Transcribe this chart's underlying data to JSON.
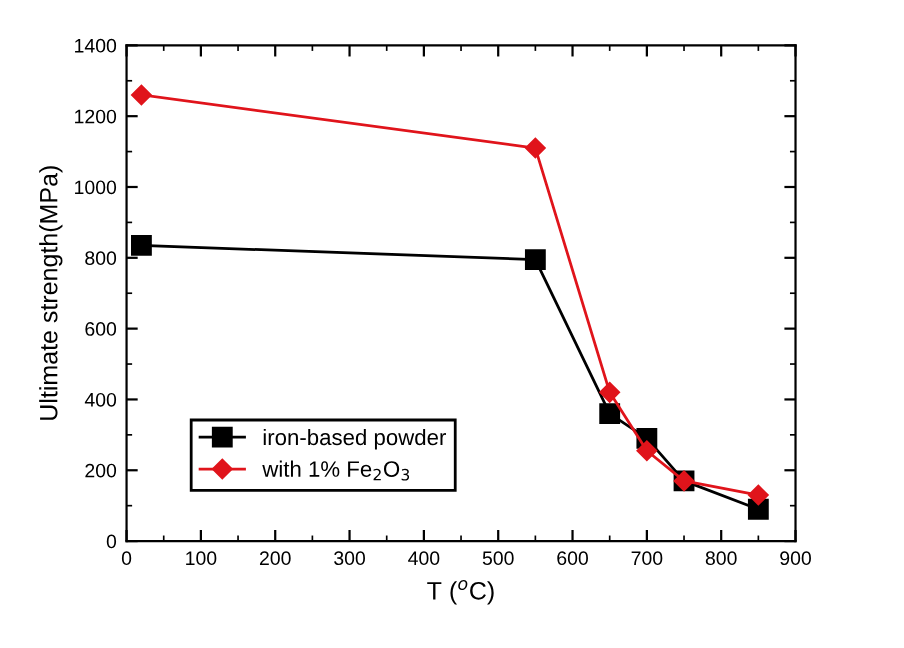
{
  "chart_data": {
    "type": "line",
    "xlabel": "T ($^{o}$C)",
    "ylabel": "Ultimate strength(MPa)",
    "xlim": [
      0,
      900
    ],
    "xticks": [
      0,
      100,
      200,
      300,
      400,
      500,
      600,
      700,
      800,
      900
    ],
    "ylim": [
      0,
      1400
    ],
    "yticks": [
      0,
      200,
      400,
      600,
      800,
      1000,
      1200,
      1400
    ],
    "grid": false,
    "legend": "bottom left",
    "series": [
      {
        "name": "iron-based powder",
        "color": "#000000",
        "marker": "square",
        "x": [
          20,
          550,
          650,
          700,
          750,
          850
        ],
        "values": [
          835,
          795,
          360,
          290,
          170,
          90
        ]
      },
      {
        "name": "with 1% Fe$_{2}$O$_{3}$",
        "color": "#e0141b",
        "marker": "diamond",
        "x": [
          20,
          550,
          650,
          700,
          750,
          850
        ],
        "values": [
          1260,
          1110,
          420,
          255,
          170,
          130
        ]
      }
    ]
  }
}
